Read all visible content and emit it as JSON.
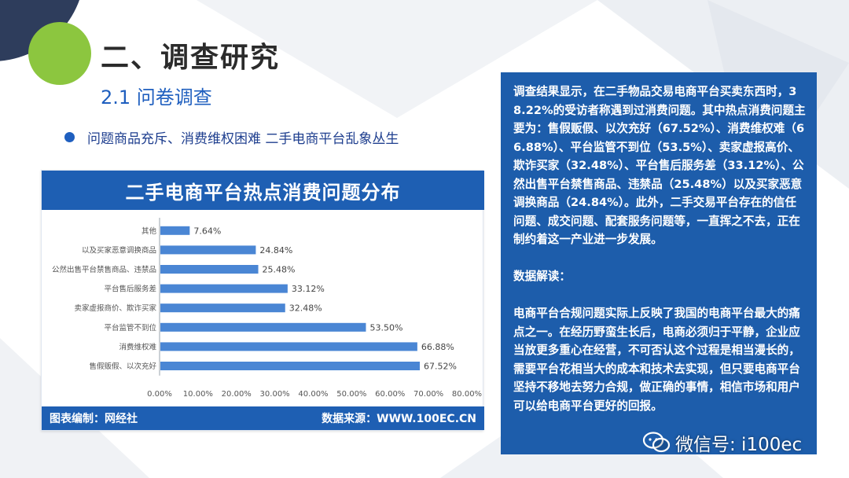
{
  "page": {
    "title": "二、调查研究",
    "subtitle": "2.1 问卷调查",
    "bullet": "问题商品充斥、消费维权困难 二手电商平台乱象丛生"
  },
  "chart_card": {
    "footer_left": "图表编制：网经社",
    "footer_right": "数据来源：WWW.100EC.CN"
  },
  "chart_data": {
    "type": "bar",
    "orientation": "horizontal",
    "title": "二手电商平台热点消费问题分布",
    "categories": [
      "其他",
      "以及买家恶意调换商品",
      "公然出售平台禁售商品、违禁品",
      "平台售后服务差",
      "卖家虚报商价、欺诈买家",
      "平台监管不到位",
      "消费维权难",
      "售假贩假、以次充好"
    ],
    "values": [
      7.64,
      24.84,
      25.48,
      33.12,
      32.48,
      53.5,
      66.88,
      67.52
    ],
    "data_labels": [
      "7.64%",
      "24.84%",
      "25.48%",
      "33.12%",
      "32.48%",
      "53.50%",
      "66.88%",
      "67.52%"
    ],
    "xlim": [
      0,
      80
    ],
    "xticks": [
      "0.00%",
      "10.00%",
      "20.00%",
      "30.00%",
      "40.00%",
      "50.00%",
      "60.00%",
      "70.00%",
      "80.00%"
    ],
    "xlabel": "",
    "ylabel": "",
    "grid": false,
    "bar_color": "#4a86d4"
  },
  "info_panel": {
    "para1": "调查结果显示，在二手物品交易电商平台买卖东西时，38.22%的受访者称遇到过消费问题。其中热点消费问题主要为：售假贩假、以次充好（67.52%）、消费维权难（66.88%）、平台监管不到位（53.5%）、卖家虚报高价、欺诈买家（32.48%）、平台售后服务差（33.12%）、公然出售平台禁售商品、违禁品（25.48%）以及买家恶意调换商品（24.84%）。此外，二手交易平台存在的信任问题、成交问题、配套服务问题等，一直挥之不去，正在制约着这一产业进一步发展。",
    "heading": "数据解读：",
    "para2": "电商平台合规问题实际上反映了我国的电商平台最大的痛点之一。在经历野蛮生长后，电商必须归于平静，企业应当放更多重心在经营，不可否认这个过程是相当漫长的，需要平台花相当大的成本和技术去实现，但只要电商平台坚持不移地去努力合规，做正确的事情，相信市场和用户可以给电商平台更好的回报。"
  },
  "watermark": {
    "text": "微信号: i100ec",
    "icon": "wechat-icon"
  },
  "colors": {
    "accent_blue": "#1e5fb3",
    "panel_blue": "#1d5dab",
    "green_circle": "#8cc63f",
    "dark_navy": "#2e3d5c"
  }
}
